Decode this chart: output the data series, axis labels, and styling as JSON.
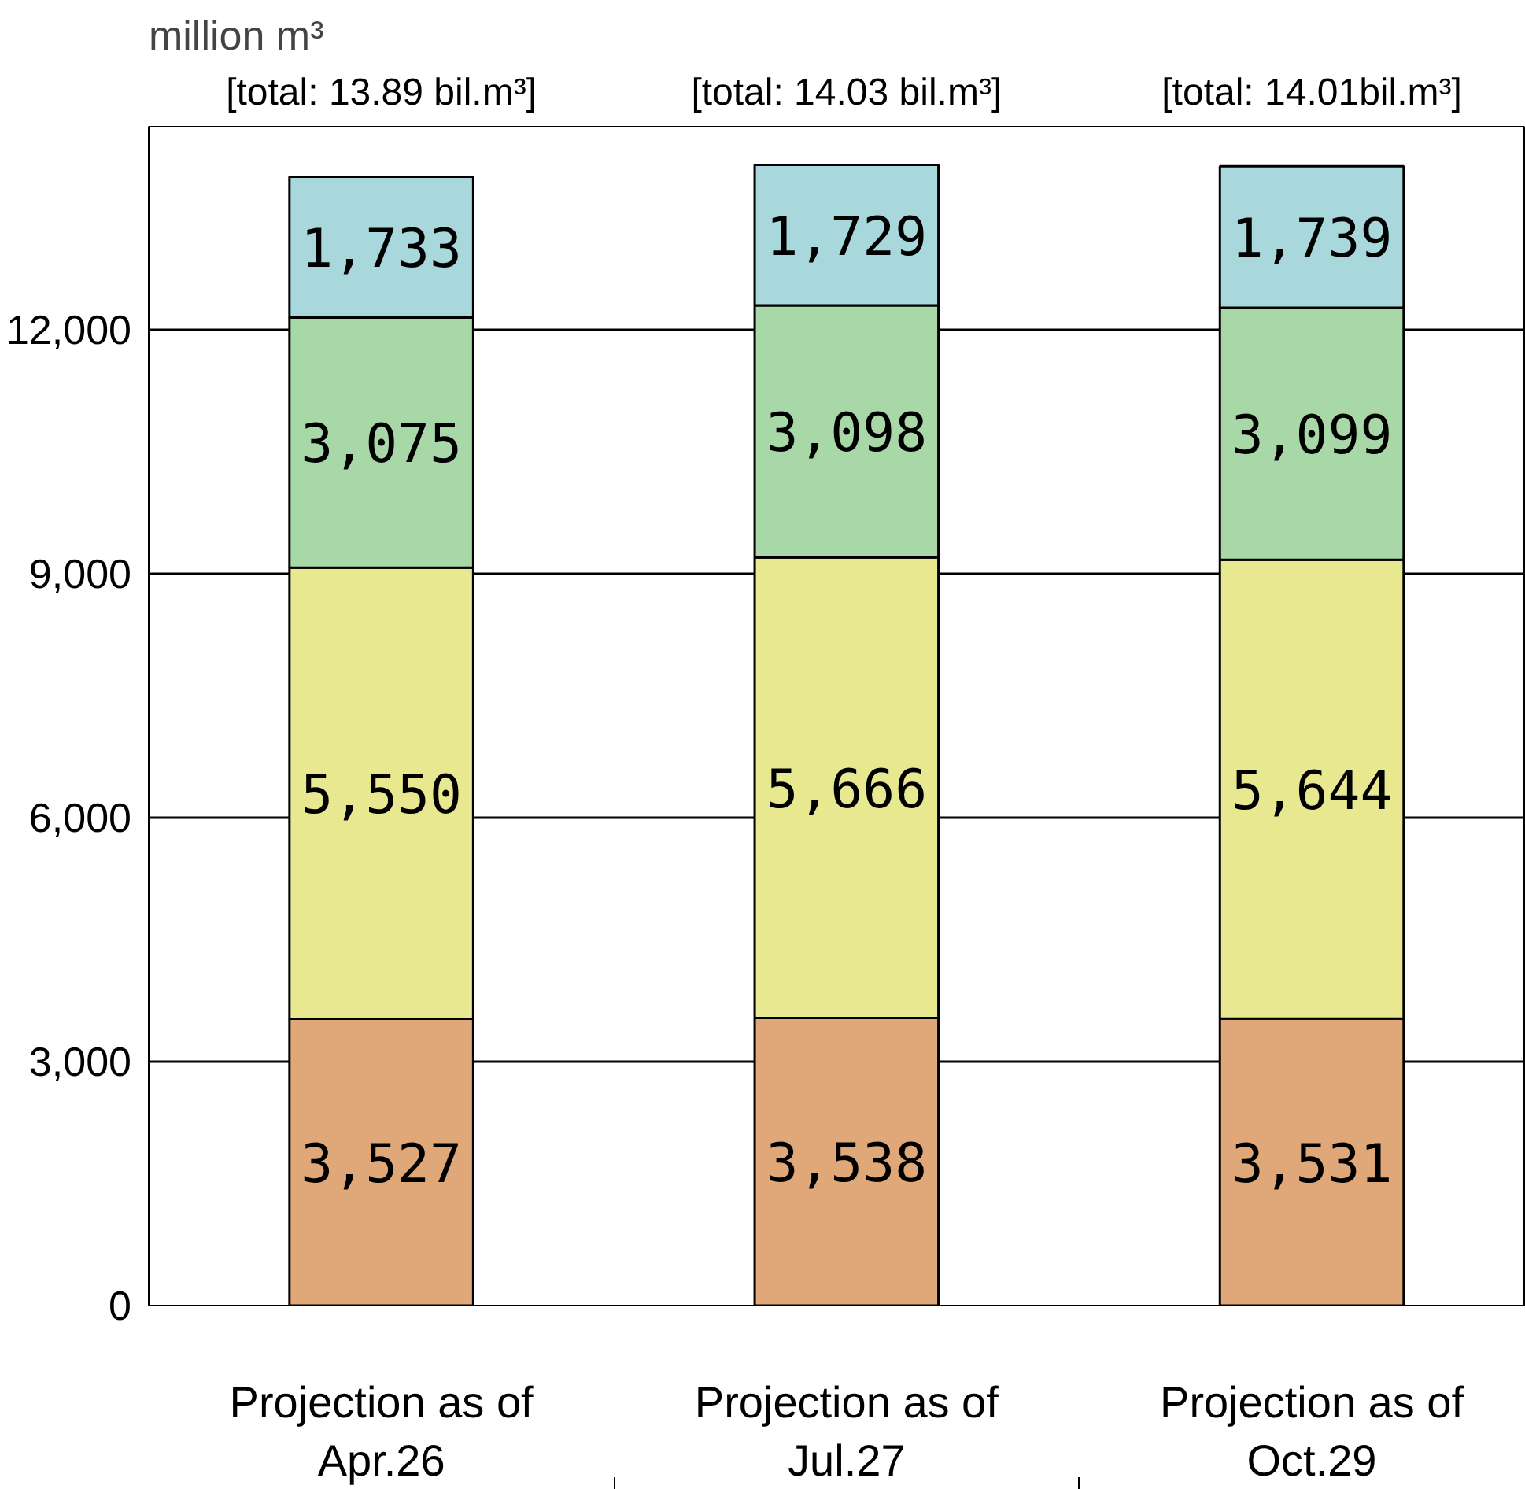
{
  "chart_data": {
    "type": "bar",
    "stacked": true,
    "ylabel": "million m³",
    "categories": [
      "Projection as of\nApr.26",
      "Projection as of\nJul.27",
      "Projection as of\nOct.29"
    ],
    "series": [
      {
        "color": "#e0a878",
        "values": [
          3527,
          3538,
          3531
        ],
        "value_labels": [
          "3,527",
          "3,538",
          "3,531"
        ]
      },
      {
        "color": "#e8e890",
        "values": [
          5550,
          5666,
          5644
        ],
        "value_labels": [
          "5,550",
          "5,666",
          "5,644"
        ]
      },
      {
        "color": "#a8d8a8",
        "values": [
          3075,
          3098,
          3099
        ],
        "value_labels": [
          "3,075",
          "3,098",
          "3,099"
        ]
      },
      {
        "color": "#a8d8dc",
        "values": [
          1733,
          1729,
          1739
        ],
        "value_labels": [
          "1,733",
          "1,729",
          "1,739"
        ]
      }
    ],
    "annotations": [
      "[total: 13.89 bil.m³]",
      "[total: 14.03 bil.m³]",
      "[total: 14.01bil.m³]"
    ],
    "ylim": [
      0,
      14500
    ],
    "yticks": [
      0,
      {
        "value": 3000,
        "label": "3,000"
      },
      {
        "value": 6000,
        "label": "6,000"
      },
      {
        "value": 9000,
        "label": "9,000"
      },
      {
        "value": 12000,
        "label": "12,000"
      }
    ],
    "grid": "y"
  }
}
